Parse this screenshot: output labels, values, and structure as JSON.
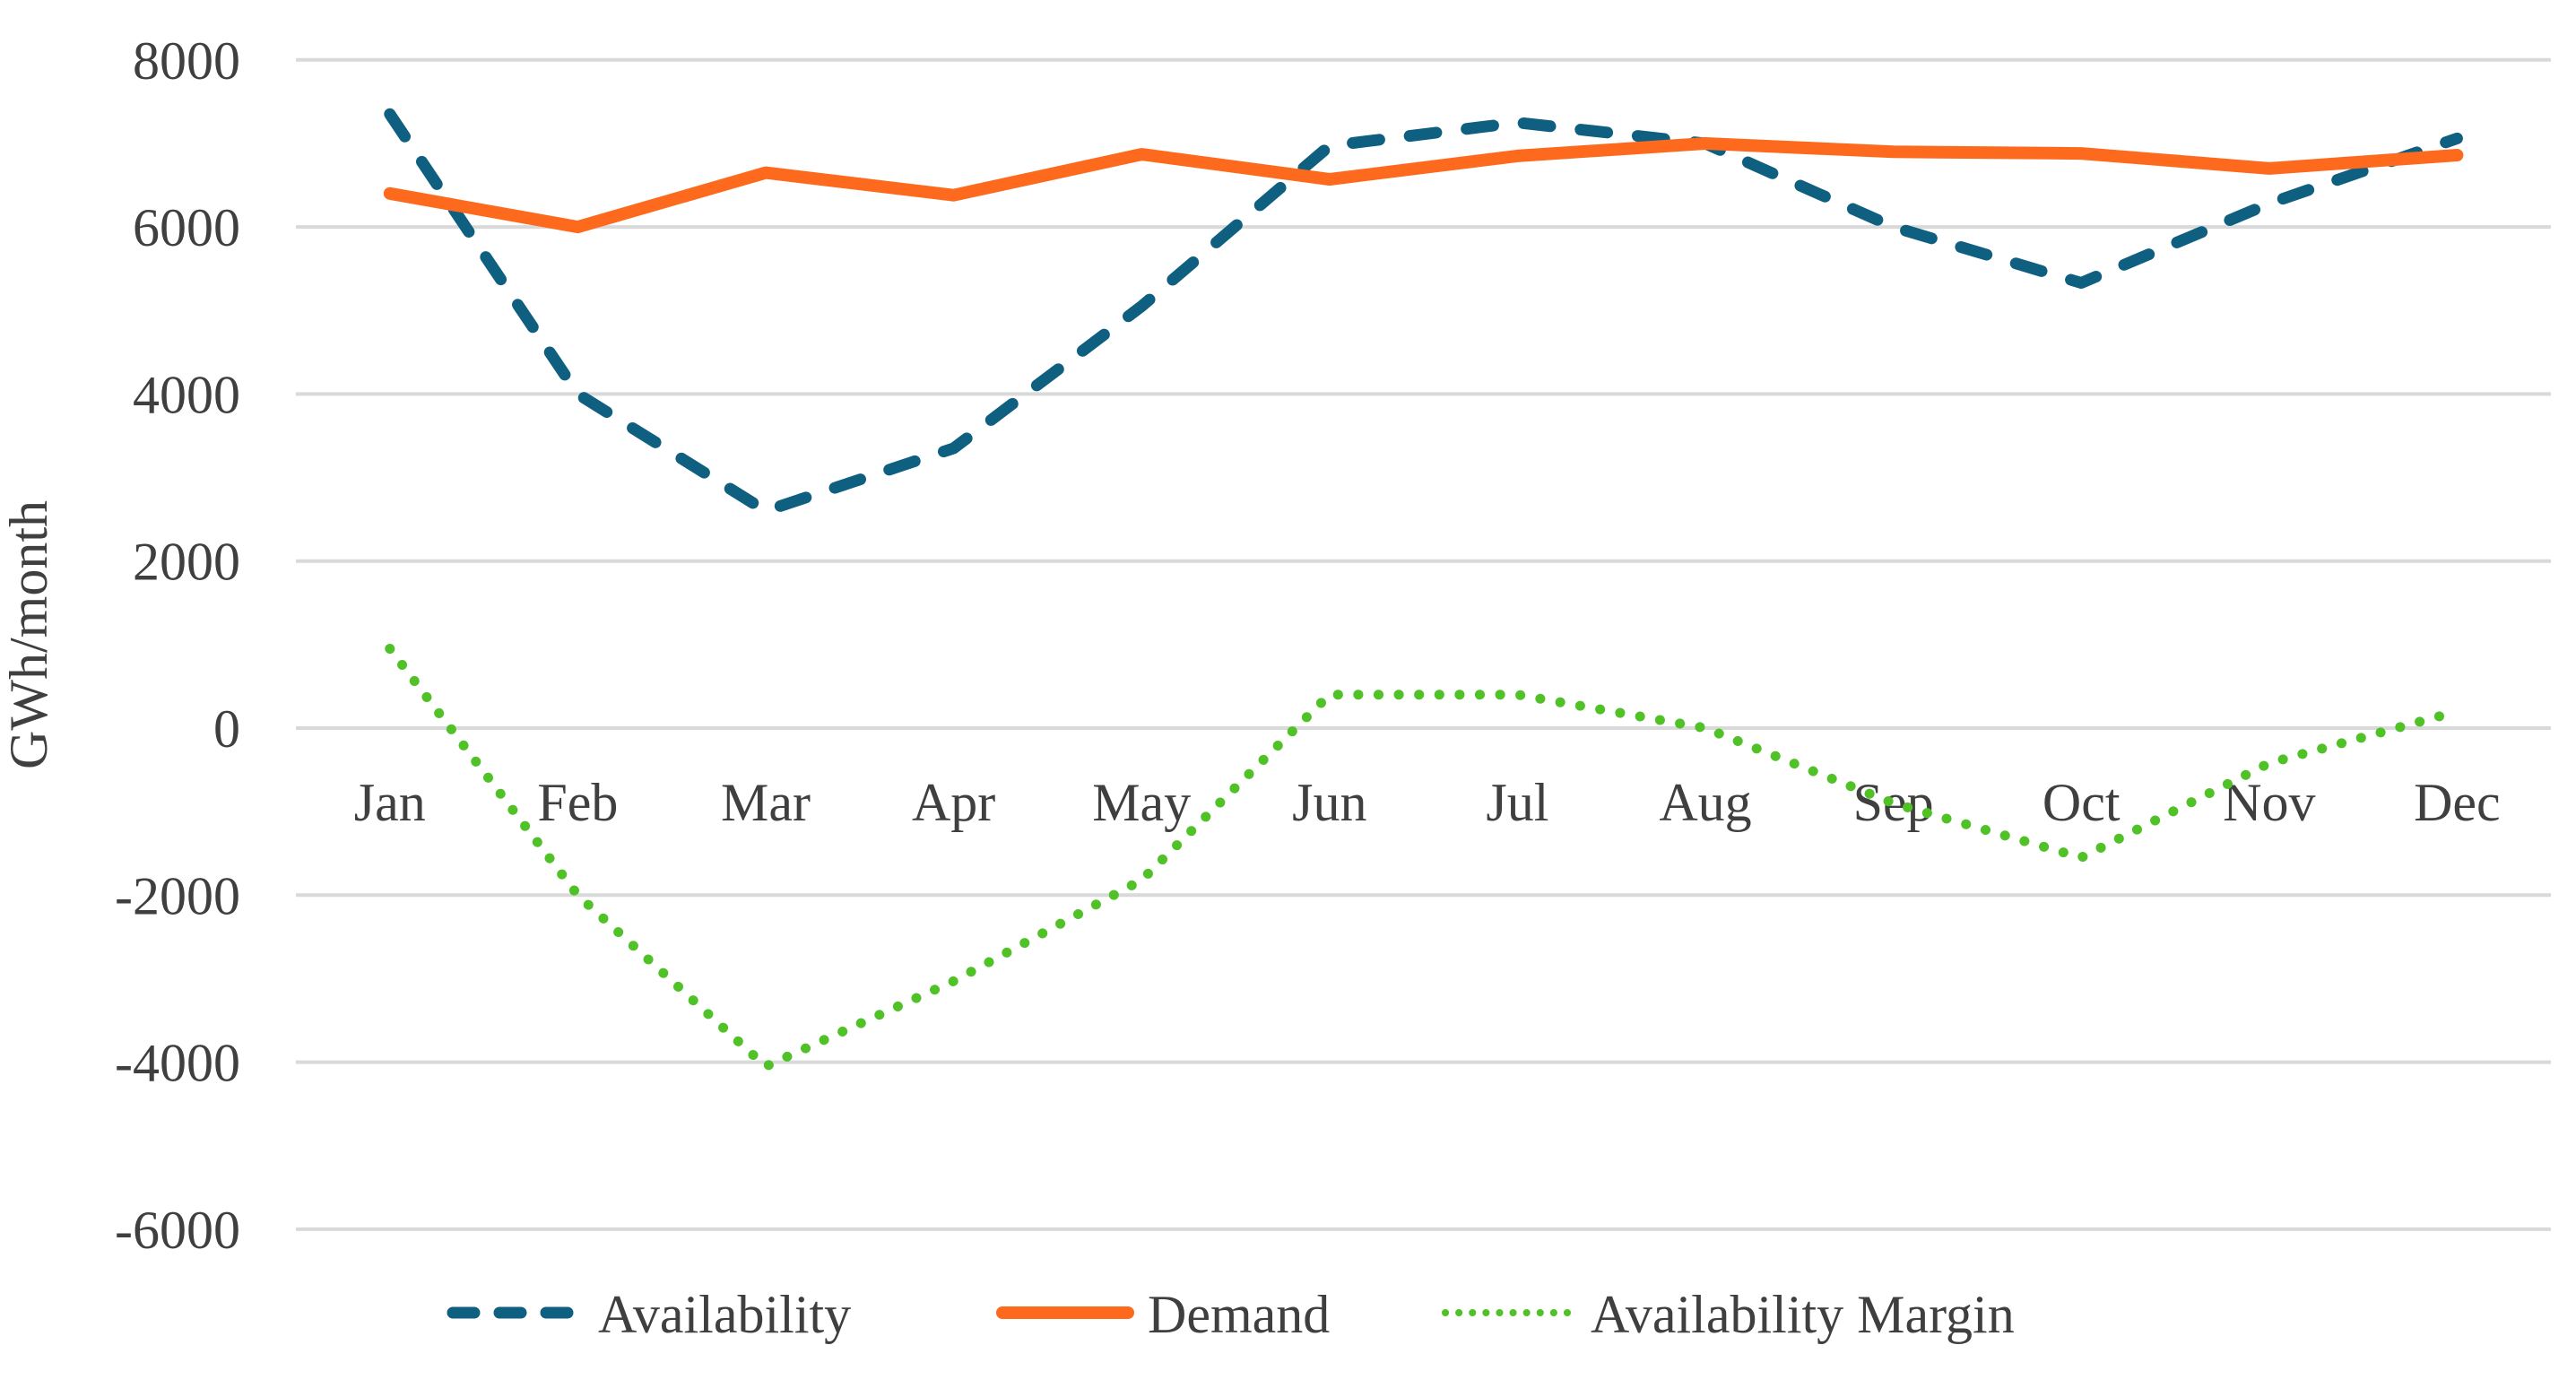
{
  "page": {
    "background": "#ffffff"
  },
  "chart_data": {
    "type": "line",
    "title": "",
    "xlabel": "",
    "ylabel": "GWh/month",
    "categories": [
      "Jan",
      "Feb",
      "Mar",
      "Apr",
      "May",
      "Jun",
      "Jul",
      "Aug",
      "Sep",
      "Oct",
      "Nov",
      "Dec"
    ],
    "y_ticks": [
      8000,
      6000,
      4000,
      2000,
      0,
      -2000,
      -4000,
      -6000
    ],
    "ylim": [
      -6000,
      8000
    ],
    "grid": true,
    "legend_position": "bottom",
    "gridline_color": "#d9d9d9",
    "text_color": "#3f3f3f",
    "series": [
      {
        "name": "Availability",
        "style": "dashed",
        "color": "#0e5f80",
        "values": [
          7350,
          4000,
          2600,
          3350,
          5050,
          6970,
          7250,
          7000,
          6000,
          5330,
          6280,
          7060
        ]
      },
      {
        "name": "Demand",
        "style": "solid",
        "color": "#fd6a1e",
        "values": [
          6400,
          6000,
          6650,
          6380,
          6870,
          6570,
          6850,
          7000,
          6900,
          6880,
          6700,
          6860
        ]
      },
      {
        "name": "Availability Margin",
        "style": "dotted",
        "color": "#50c228",
        "values": [
          950,
          -2000,
          -4050,
          -3030,
          -1820,
          400,
          400,
          0,
          -900,
          -1550,
          -420,
          200
        ]
      }
    ]
  }
}
